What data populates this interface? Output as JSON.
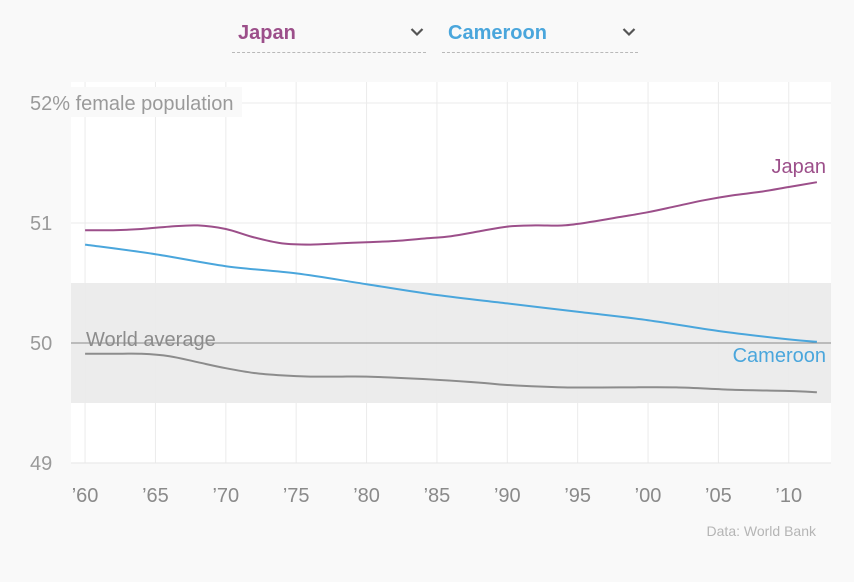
{
  "selectors": [
    {
      "value": "Japan",
      "color": "#9c4f8a"
    },
    {
      "value": "Cameroon",
      "color": "#4aa6dc"
    }
  ],
  "source": "Data: World Bank",
  "chart_data": {
    "type": "line",
    "ylabel_top": "52% female population",
    "ylim": [
      49,
      52
    ],
    "yticks": [
      49,
      50,
      51
    ],
    "xlim": [
      1959,
      2013
    ],
    "xticks": [
      1960,
      1965,
      1970,
      1975,
      1980,
      1985,
      1990,
      1995,
      2000,
      2005,
      2010
    ],
    "xtick_labels": [
      "’60",
      "’65",
      "’70",
      "’75",
      "’80",
      "’85",
      "’90",
      "’95",
      "’00",
      "’05",
      "’10"
    ],
    "band": [
      49.5,
      50.5
    ],
    "reference_line": 50,
    "grid": true,
    "series": [
      {
        "name": "Japan",
        "color": "#9c4f8a",
        "label": "Japan",
        "x": [
          1960,
          1962,
          1964,
          1966,
          1968,
          1970,
          1972,
          1974,
          1976,
          1978,
          1980,
          1982,
          1984,
          1986,
          1988,
          1990,
          1992,
          1994,
          1996,
          1998,
          2000,
          2002,
          2004,
          2006,
          2008,
          2010,
          2012
        ],
        "y": [
          50.94,
          50.94,
          50.95,
          50.97,
          50.98,
          50.95,
          50.88,
          50.83,
          50.82,
          50.83,
          50.84,
          50.85,
          50.87,
          50.89,
          50.93,
          50.97,
          50.98,
          50.98,
          51.01,
          51.05,
          51.09,
          51.14,
          51.19,
          51.23,
          51.26,
          51.3,
          51.34
        ]
      },
      {
        "name": "Cameroon",
        "color": "#4aa6dc",
        "label": "Cameroon",
        "x": [
          1960,
          1965,
          1970,
          1975,
          1980,
          1985,
          1990,
          1995,
          2000,
          2005,
          2010,
          2012
        ],
        "y": [
          50.82,
          50.74,
          50.64,
          50.58,
          50.49,
          50.4,
          50.33,
          50.26,
          50.19,
          50.1,
          50.03,
          50.01
        ]
      },
      {
        "name": "World average",
        "color": "#8c8c8c",
        "label": "World average",
        "x": [
          1960,
          1962,
          1964,
          1966,
          1968,
          1970,
          1972,
          1974,
          1976,
          1978,
          1980,
          1984,
          1988,
          1990,
          1994,
          1998,
          2002,
          2006,
          2010,
          2012
        ],
        "y": [
          49.91,
          49.91,
          49.91,
          49.89,
          49.84,
          49.79,
          49.75,
          49.73,
          49.72,
          49.72,
          49.72,
          49.7,
          49.67,
          49.65,
          49.63,
          49.63,
          49.63,
          49.61,
          49.6,
          49.59
        ]
      }
    ]
  }
}
